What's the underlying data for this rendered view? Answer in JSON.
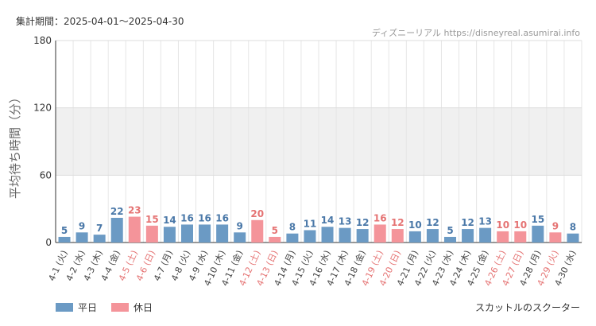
{
  "header": {
    "period_label": "集計期間：2025-04-01～2025-04-30",
    "source": "ディズニーリアル https://disneyreal.asumirai.info"
  },
  "footer": {
    "attraction": "スカットルのスクーター"
  },
  "colors": {
    "weekday": "#6b9ac4",
    "holiday": "#f4949a",
    "weekday_label": "#4a78a8",
    "holiday_label": "#e57373",
    "band": "#f0f0f0"
  },
  "chart_data": {
    "type": "bar",
    "ylabel": "平均待ち時間（分）",
    "ylim": [
      0,
      180
    ],
    "yticks": [
      0,
      60,
      120,
      180
    ],
    "shaded_band": [
      60,
      120
    ],
    "legend": {
      "placement": "bottom-left",
      "entries": [
        {
          "name": "平日",
          "kind": "weekday"
        },
        {
          "name": "休日",
          "kind": "holiday"
        }
      ]
    },
    "categories": [
      "4-1 (火)",
      "4-2 (水)",
      "4-3 (木)",
      "4-4 (金)",
      "4-5 (土)",
      "4-6 (日)",
      "4-7 (月)",
      "4-8 (火)",
      "4-9 (水)",
      "4-10 (木)",
      "4-11 (金)",
      "4-12 (土)",
      "4-13 (日)",
      "4-14 (月)",
      "4-15 (火)",
      "4-16 (水)",
      "4-17 (木)",
      "4-18 (金)",
      "4-19 (土)",
      "4-20 (日)",
      "4-21 (月)",
      "4-22 (火)",
      "4-23 (水)",
      "4-24 (木)",
      "4-25 (金)",
      "4-26 (土)",
      "4-27 (日)",
      "4-28 (月)",
      "4-29 (火)",
      "4-30 (水)"
    ],
    "values": [
      5,
      9,
      7,
      22,
      23,
      15,
      14,
      16,
      16,
      16,
      9,
      20,
      5,
      8,
      11,
      14,
      13,
      12,
      16,
      12,
      10,
      12,
      5,
      12,
      13,
      10,
      10,
      15,
      9,
      8
    ],
    "kinds": [
      "weekday",
      "weekday",
      "weekday",
      "weekday",
      "holiday",
      "holiday",
      "weekday",
      "weekday",
      "weekday",
      "weekday",
      "weekday",
      "holiday",
      "holiday",
      "weekday",
      "weekday",
      "weekday",
      "weekday",
      "weekday",
      "holiday",
      "holiday",
      "weekday",
      "weekday",
      "weekday",
      "weekday",
      "weekday",
      "holiday",
      "holiday",
      "weekday",
      "holiday",
      "weekday"
    ]
  }
}
